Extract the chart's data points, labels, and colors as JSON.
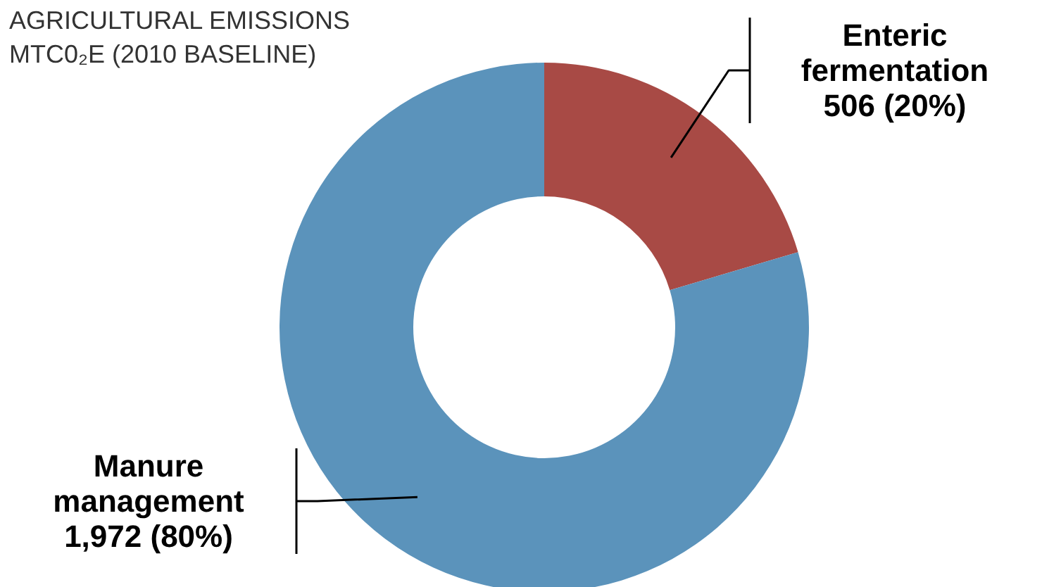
{
  "chart_data": {
    "type": "donut",
    "title": "AGRICULTURAL EMISSIONS",
    "subtitle": "MTC0₂E (2010 BASELINE)",
    "categories": [
      "Enteric fermentation",
      "Manure management"
    ],
    "values": [
      506,
      1972
    ],
    "value_labels": [
      "506 (20%)",
      "1,972 (80%)"
    ],
    "colors": [
      "#a84a45",
      "#5b93bb"
    ],
    "legend": false
  }
}
